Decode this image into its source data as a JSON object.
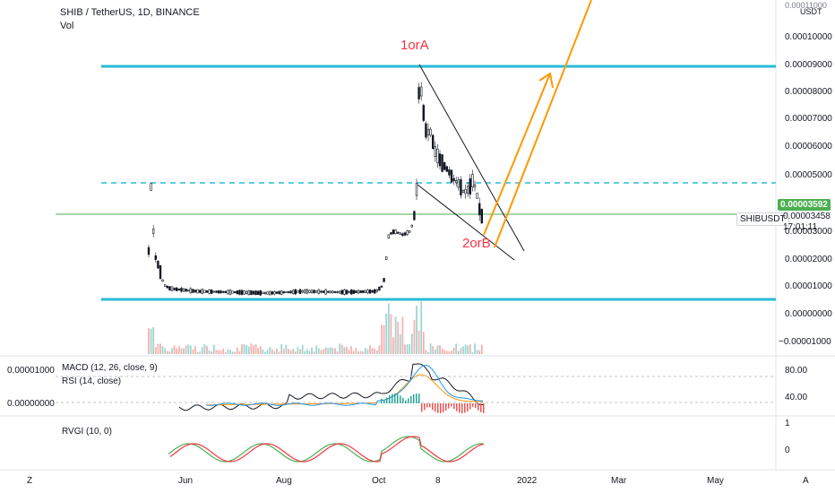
{
  "header": {
    "symbol_title": "SHIB / TetherUS, 1D, BINANCE",
    "volume_label": "Vol"
  },
  "price_axis": {
    "currency": "USDT",
    "ticks": [
      "0.00011000",
      "0.00010000",
      "0.00009000",
      "0.00008000",
      "0.00007000",
      "0.00006000",
      "0.00005000",
      "0.00003000",
      "0.00002000",
      "0.00001000",
      "0.00000000",
      "−0.00001000"
    ]
  },
  "price_tags": {
    "last_price": "0.00003592",
    "symbol": "SHIBUSDT",
    "current_price": "0.00003458",
    "countdown": "17:01:11"
  },
  "annotations": {
    "point_a": "1orA",
    "point_b": "2orB"
  },
  "macd_pane": {
    "label": "MACD (12, 26, close, 9)",
    "rsi_label": "RSI (14, close)",
    "left_tick_top": "0.00001000",
    "left_tick_bottom": "0.00000000",
    "right_tick_top": "80.00",
    "right_tick_bottom": "40.00"
  },
  "rvgi_pane": {
    "label": "RVGI (10, 0)",
    "right_tick_top": "1",
    "right_tick_bottom": "0"
  },
  "time_axis": {
    "labels": [
      "Jun",
      "Aug",
      "Oct",
      "8",
      "2022",
      "Mar",
      "May"
    ],
    "left_button": "Z",
    "right_button": "A"
  },
  "colors": {
    "support_line": "#26bcd7",
    "dashed_level": "#26bcd7",
    "current_price_line": "#4caf50",
    "projection": "#ff9800",
    "annotation": "#f23645",
    "candle": "#131722",
    "macd_line": "#131722",
    "signal_line": "#ff9800",
    "rsi_line": "#2196f3",
    "rvgi_main": "#4caf50",
    "rvgi_signal": "#f23645"
  }
}
